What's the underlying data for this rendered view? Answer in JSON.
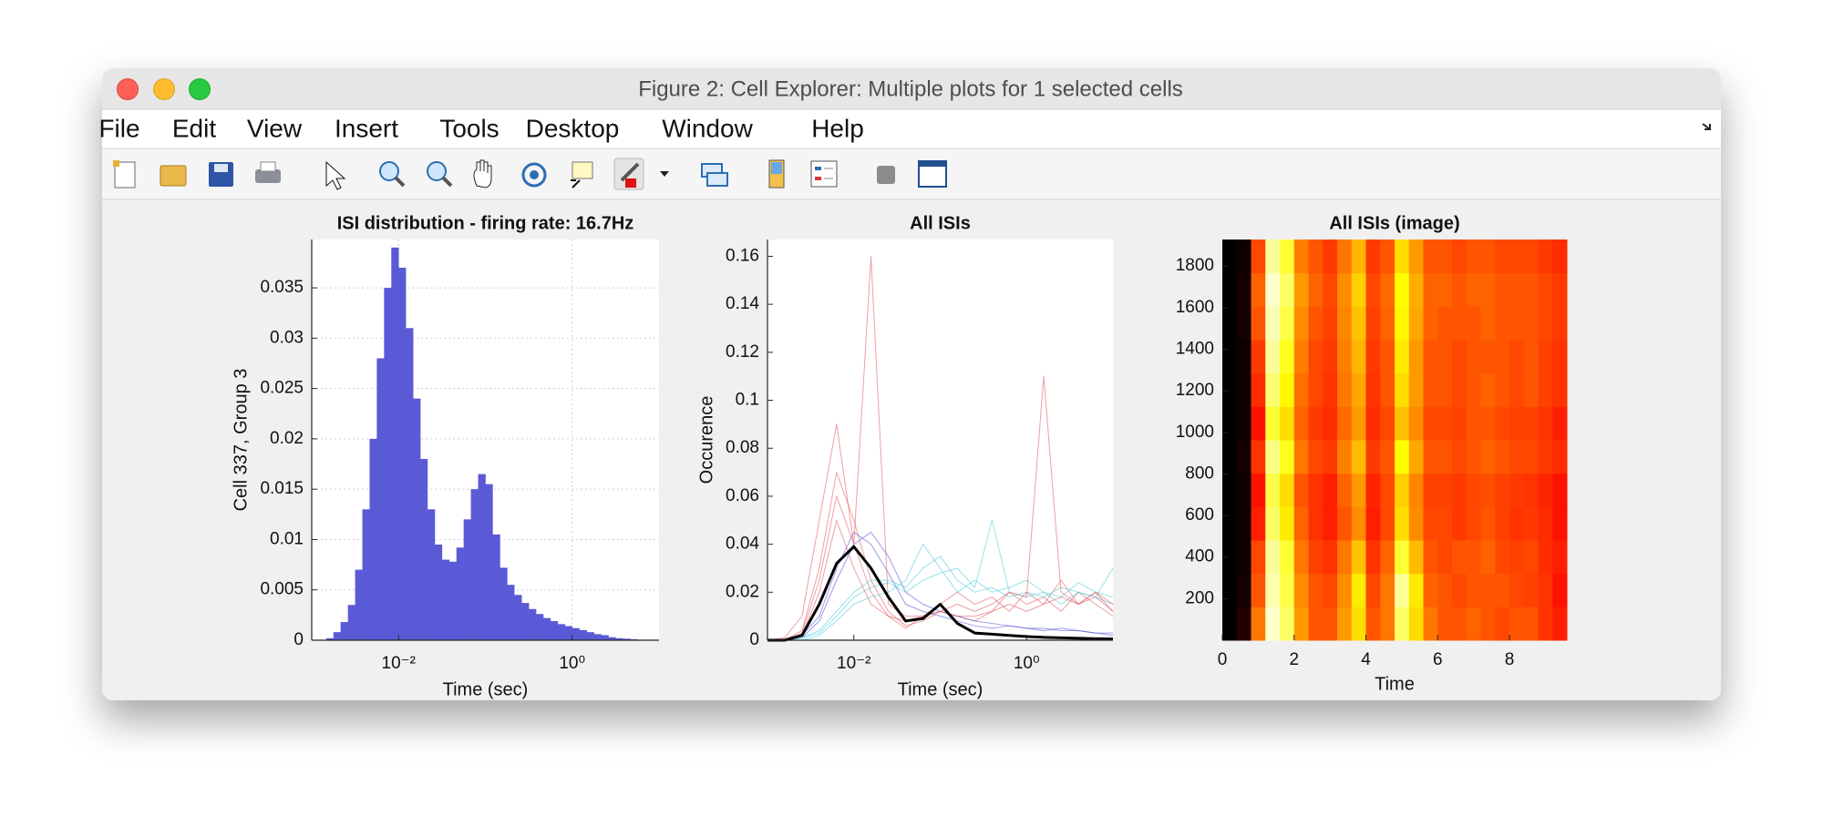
{
  "window_title": "Figure 2: Cell Explorer: Multiple plots for 1 selected cells",
  "menu": [
    "File",
    "Edit",
    "View",
    "Insert",
    "Tools",
    "Desktop",
    "Window",
    "Help"
  ],
  "chart_data": [
    {
      "type": "histogram",
      "title": "ISI distribution - firing rate: 16.7Hz",
      "xlabel": "Time (sec)",
      "ylabel": "Cell 337, Group 3",
      "xscale": "log",
      "grid": true,
      "color": "#5a5ad6",
      "bins": [
        0.001,
        0.00121,
        0.00147,
        0.00178,
        0.00215,
        0.00261,
        0.00316,
        0.00383,
        0.00464,
        0.00562,
        0.00681,
        0.00825,
        0.01,
        0.0121,
        0.0147,
        0.0178,
        0.0215,
        0.0261,
        0.0316,
        0.0383,
        0.0464,
        0.0562,
        0.0681,
        0.0825,
        0.1,
        0.121,
        0.147,
        0.178,
        0.215,
        0.261,
        0.316,
        0.383,
        0.464,
        0.562,
        0.681,
        0.825,
        1,
        1.21,
        1.47,
        1.78,
        2.15,
        2.61,
        3.16,
        3.83,
        4.64,
        5.62,
        6.81,
        8.25,
        10
      ],
      "values": [
        0,
        0,
        0.0002,
        0.0008,
        0.0018,
        0.0035,
        0.007,
        0.013,
        0.02,
        0.028,
        0.035,
        0.039,
        0.037,
        0.031,
        0.024,
        0.018,
        0.013,
        0.0095,
        0.008,
        0.0078,
        0.0092,
        0.012,
        0.015,
        0.0165,
        0.0155,
        0.0105,
        0.0072,
        0.0055,
        0.0045,
        0.0037,
        0.0031,
        0.0026,
        0.0022,
        0.0019,
        0.0016,
        0.0014,
        0.0012,
        0.001,
        0.0008,
        0.0006,
        0.0005,
        0.0003,
        0.0002,
        0.00015,
        0.0001,
        5e-05,
        2e-05,
        0
      ],
      "xlim": [
        0.001,
        10
      ],
      "xticks": [
        {
          "value": 0.01,
          "label": "10⁻²"
        },
        {
          "value": 1,
          "label": "10⁰"
        }
      ],
      "ylim": [
        0,
        0.0398
      ],
      "yticks": [
        0,
        0.005,
        0.01,
        0.015,
        0.02,
        0.025,
        0.03,
        0.035
      ]
    },
    {
      "type": "line",
      "title": "All ISIs",
      "xlabel": "Time (sec)",
      "ylabel": "Occurence",
      "xscale": "log",
      "x": [
        0.001,
        0.00158,
        0.00251,
        0.00398,
        0.00631,
        0.01,
        0.0158,
        0.0251,
        0.0398,
        0.0631,
        0.1,
        0.158,
        0.251,
        0.398,
        0.631,
        1,
        1.58,
        2.51,
        3.98,
        6.31,
        10
      ],
      "series": [
        {
          "color": "#e0505a",
          "line_width": 1,
          "values": [
            0,
            0,
            0.004,
            0.03,
            0.07,
            0.05,
            0.025,
            0.012,
            0.006,
            0.008,
            0.012,
            0.01,
            0.008,
            0.012,
            0.02,
            0.015,
            0.018,
            0.012,
            0.02,
            0.015,
            0.01
          ]
        },
        {
          "color": "#e0505a",
          "line_width": 1,
          "values": [
            0,
            0.001,
            0.01,
            0.05,
            0.09,
            0.04,
            0.02,
            0.01,
            0.005,
            0.01,
            0.015,
            0.02,
            0.015,
            0.018,
            0.012,
            0.02,
            0.015,
            0.025,
            0.015,
            0.018,
            0.012
          ]
        },
        {
          "color": "#4a4ad8",
          "line_width": 1,
          "values": [
            0,
            0,
            0.002,
            0.01,
            0.03,
            0.045,
            0.04,
            0.028,
            0.015,
            0.012,
            0.01,
            0.008,
            0.006,
            0.005,
            0.006,
            0.005,
            0.004,
            0.005,
            0.004,
            0.003,
            0.003
          ]
        },
        {
          "color": "#4a4ad8",
          "line_width": 1,
          "values": [
            0,
            0,
            0.001,
            0.008,
            0.025,
            0.04,
            0.045,
            0.035,
            0.02,
            0.015,
            0.012,
            0.01,
            0.008,
            0.007,
            0.006,
            0.005,
            0.005,
            0.004,
            0.004,
            0.003,
            0.002
          ]
        },
        {
          "color": "#40c8d8",
          "line_width": 1,
          "values": [
            0,
            0,
            0.001,
            0.004,
            0.012,
            0.02,
            0.025,
            0.025,
            0.022,
            0.03,
            0.035,
            0.025,
            0.02,
            0.022,
            0.018,
            0.02,
            0.018,
            0.022,
            0.02,
            0.018,
            0.015
          ]
        },
        {
          "color": "#40c8d8",
          "line_width": 1,
          "values": [
            0,
            0,
            0,
            0.002,
            0.008,
            0.015,
            0.018,
            0.02,
            0.025,
            0.04,
            0.03,
            0.02,
            0.025,
            0.02,
            0.022,
            0.025,
            0.02,
            0.018,
            0.024,
            0.02,
            0.018
          ]
        },
        {
          "color": "#40c8d8",
          "line_width": 1,
          "values": [
            0,
            0,
            0.001,
            0.003,
            0.01,
            0.018,
            0.022,
            0.024,
            0.02,
            0.025,
            0.028,
            0.03,
            0.022,
            0.05,
            0.02,
            0.018,
            0.02,
            0.015,
            0.02,
            0.018,
            0.03
          ]
        },
        {
          "color": "#e0505a",
          "line_width": 1,
          "values": [
            0,
            0,
            0.002,
            0.02,
            0.05,
            0.03,
            0.015,
            0.01,
            0.008,
            0.01,
            0.012,
            0.015,
            0.012,
            0.015,
            0.02,
            0.018,
            0.11,
            0.02,
            0.015,
            0.02,
            0.015
          ]
        },
        {
          "color": "#e0505a",
          "line_width": 1,
          "values": [
            0,
            0,
            0.003,
            0.025,
            0.06,
            0.04,
            0.16,
            0.015,
            0.01,
            0.01,
            0.012,
            0.01,
            0.01,
            0.012,
            0.015,
            0.012,
            0.015,
            0.018,
            0.015,
            0.02,
            0.012
          ]
        },
        {
          "color": "#000000",
          "line_width": 3,
          "values": [
            0,
            0,
            0.002,
            0.015,
            0.032,
            0.039,
            0.03,
            0.018,
            0.008,
            0.009,
            0.015,
            0.007,
            0.003,
            0.0025,
            0.002,
            0.0015,
            0.0012,
            0.001,
            0.0008,
            0.0006,
            0.0005
          ]
        }
      ],
      "xlim": [
        0.001,
        10
      ],
      "xticks": [
        {
          "value": 0.01,
          "label": "10⁻²"
        },
        {
          "value": 1,
          "label": "10⁰"
        }
      ],
      "ylim": [
        0,
        0.167
      ],
      "yticks": [
        0,
        0.02,
        0.04,
        0.06,
        0.08,
        0.1,
        0.12,
        0.14,
        0.16
      ]
    },
    {
      "type": "heatmap",
      "title": "All ISIs (image)",
      "xlabel": "Time",
      "colormap": "hot",
      "z": [
        [
          0,
          0.05,
          0.55,
          0.95,
          0.85,
          0.6,
          0.5,
          0.5,
          0.6,
          0.7,
          0.5,
          0.55,
          0.85,
          0.7,
          0.55,
          0.5,
          0.5,
          0.52,
          0.5,
          0.48,
          0.5,
          0.5,
          0.45,
          0.42
        ],
        [
          0,
          0.03,
          0.5,
          0.92,
          0.82,
          0.58,
          0.5,
          0.48,
          0.58,
          0.72,
          0.48,
          0.55,
          0.9,
          0.72,
          0.52,
          0.5,
          0.48,
          0.5,
          0.5,
          0.5,
          0.48,
          0.47,
          0.45,
          0.4
        ],
        [
          0,
          0.02,
          0.48,
          0.9,
          0.8,
          0.55,
          0.47,
          0.45,
          0.55,
          0.66,
          0.45,
          0.52,
          0.8,
          0.65,
          0.5,
          0.48,
          0.5,
          0.5,
          0.52,
          0.48,
          0.47,
          0.48,
          0.44,
          0.42
        ],
        [
          0,
          0.02,
          0.42,
          0.85,
          0.72,
          0.52,
          0.45,
          0.42,
          0.5,
          0.58,
          0.42,
          0.48,
          0.7,
          0.58,
          0.48,
          0.48,
          0.46,
          0.48,
          0.5,
          0.47,
          0.45,
          0.46,
          0.44,
          0.4
        ],
        [
          0,
          0.02,
          0.4,
          0.82,
          0.7,
          0.5,
          0.45,
          0.42,
          0.52,
          0.6,
          0.43,
          0.48,
          0.68,
          0.57,
          0.47,
          0.47,
          0.46,
          0.48,
          0.49,
          0.47,
          0.46,
          0.45,
          0.43,
          0.4
        ],
        [
          0,
          0.03,
          0.45,
          0.88,
          0.78,
          0.55,
          0.48,
          0.46,
          0.56,
          0.65,
          0.46,
          0.5,
          0.75,
          0.62,
          0.5,
          0.5,
          0.48,
          0.5,
          0.52,
          0.5,
          0.48,
          0.48,
          0.46,
          0.44
        ],
        [
          0,
          0.02,
          0.4,
          0.8,
          0.7,
          0.52,
          0.46,
          0.44,
          0.53,
          0.6,
          0.44,
          0.48,
          0.66,
          0.58,
          0.48,
          0.48,
          0.47,
          0.5,
          0.5,
          0.48,
          0.47,
          0.47,
          0.45,
          0.42
        ],
        [
          0,
          0.02,
          0.44,
          0.86,
          0.74,
          0.54,
          0.48,
          0.45,
          0.55,
          0.62,
          0.45,
          0.5,
          0.7,
          0.6,
          0.5,
          0.5,
          0.48,
          0.5,
          0.52,
          0.5,
          0.48,
          0.5,
          0.47,
          0.45
        ],
        [
          0,
          0.02,
          0.46,
          0.9,
          0.78,
          0.56,
          0.48,
          0.46,
          0.56,
          0.64,
          0.46,
          0.5,
          0.72,
          0.6,
          0.5,
          0.5,
          0.48,
          0.5,
          0.5,
          0.5,
          0.48,
          0.5,
          0.47,
          0.45
        ],
        [
          0,
          0.03,
          0.5,
          0.93,
          0.82,
          0.58,
          0.5,
          0.47,
          0.57,
          0.66,
          0.47,
          0.52,
          0.74,
          0.62,
          0.52,
          0.5,
          0.5,
          0.5,
          0.52,
          0.5,
          0.5,
          0.5,
          0.48,
          0.46
        ],
        [
          0,
          0.03,
          0.52,
          0.95,
          0.85,
          0.6,
          0.52,
          0.48,
          0.58,
          0.68,
          0.48,
          0.53,
          0.75,
          0.63,
          0.52,
          0.52,
          0.5,
          0.52,
          0.52,
          0.5,
          0.5,
          0.5,
          0.48,
          0.46
        ],
        [
          0,
          0.02,
          0.48,
          0.9,
          0.8,
          0.56,
          0.5,
          0.46,
          0.55,
          0.64,
          0.46,
          0.5,
          0.7,
          0.6,
          0.5,
          0.5,
          0.48,
          0.5,
          0.5,
          0.48,
          0.48,
          0.48,
          0.46,
          0.44
        ]
      ],
      "xlim": [
        0,
        9.6
      ],
      "xticks": [
        0,
        2,
        4,
        6,
        8
      ],
      "ylim": [
        0,
        1928
      ],
      "yticks": [
        200,
        400,
        600,
        800,
        1000,
        1200,
        1400,
        1600,
        1800
      ]
    }
  ]
}
